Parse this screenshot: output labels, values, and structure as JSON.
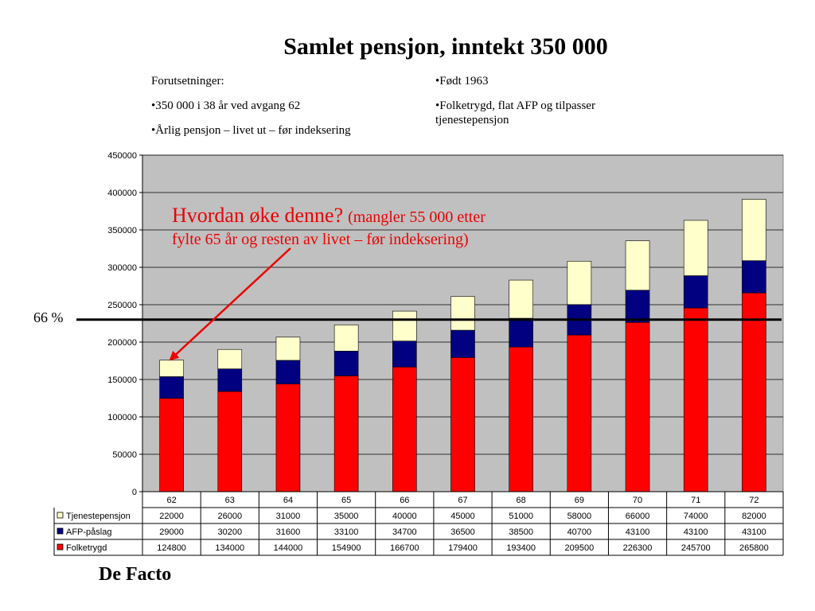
{
  "header": {
    "title": "Samlet pensjon, inntekt 350 000"
  },
  "notes": {
    "left": [
      "Forutsetninger:",
      "•350 000 i 38 år ved avgang 62",
      "•Årlig pensjon – livet ut – før indeksering"
    ],
    "right": [
      "•Født 1963",
      "•Folketrygd, flat AFP og tilpasser",
      "tjenestepensjon"
    ]
  },
  "annotation": {
    "main": "Hvordan øke denne?",
    "detail_1": "(mangler 55 000 etter",
    "detail_2": "fylte 65 år og resten av livet – før indeksering)",
    "color": "#ee0000"
  },
  "reference": {
    "label": "66 %",
    "value": 230000
  },
  "footer": {
    "text": "De Facto"
  },
  "chart_data": {
    "type": "bar",
    "stacked": true,
    "categories": [
      "62",
      "63",
      "64",
      "65",
      "66",
      "67",
      "68",
      "69",
      "70",
      "71",
      "72"
    ],
    "series": [
      {
        "name": "Folketrygd",
        "color": "#ff0000",
        "values": [
          124800,
          134000,
          144000,
          154900,
          166700,
          179400,
          193400,
          209500,
          226300,
          245700,
          265800
        ]
      },
      {
        "name": "AFP-påslag",
        "color": "#000080",
        "values": [
          29000,
          30200,
          31600,
          33100,
          34700,
          36500,
          38500,
          40700,
          43100,
          43100,
          43100
        ]
      },
      {
        "name": "Tjenestepensjon",
        "color": "#ffffcc",
        "values": [
          22000,
          26000,
          31000,
          35000,
          40000,
          45000,
          51000,
          58000,
          66000,
          74000,
          82000
        ]
      }
    ],
    "table_row_order": [
      "Tjenestepensjon",
      "AFP-påslag",
      "Folketrygd"
    ],
    "ylim": [
      0,
      450000
    ],
    "yticks": [
      0,
      50000,
      100000,
      150000,
      200000,
      250000,
      300000,
      350000,
      400000,
      450000
    ],
    "grid": true,
    "plot_background": "#c0c0c0",
    "data_table": true
  }
}
